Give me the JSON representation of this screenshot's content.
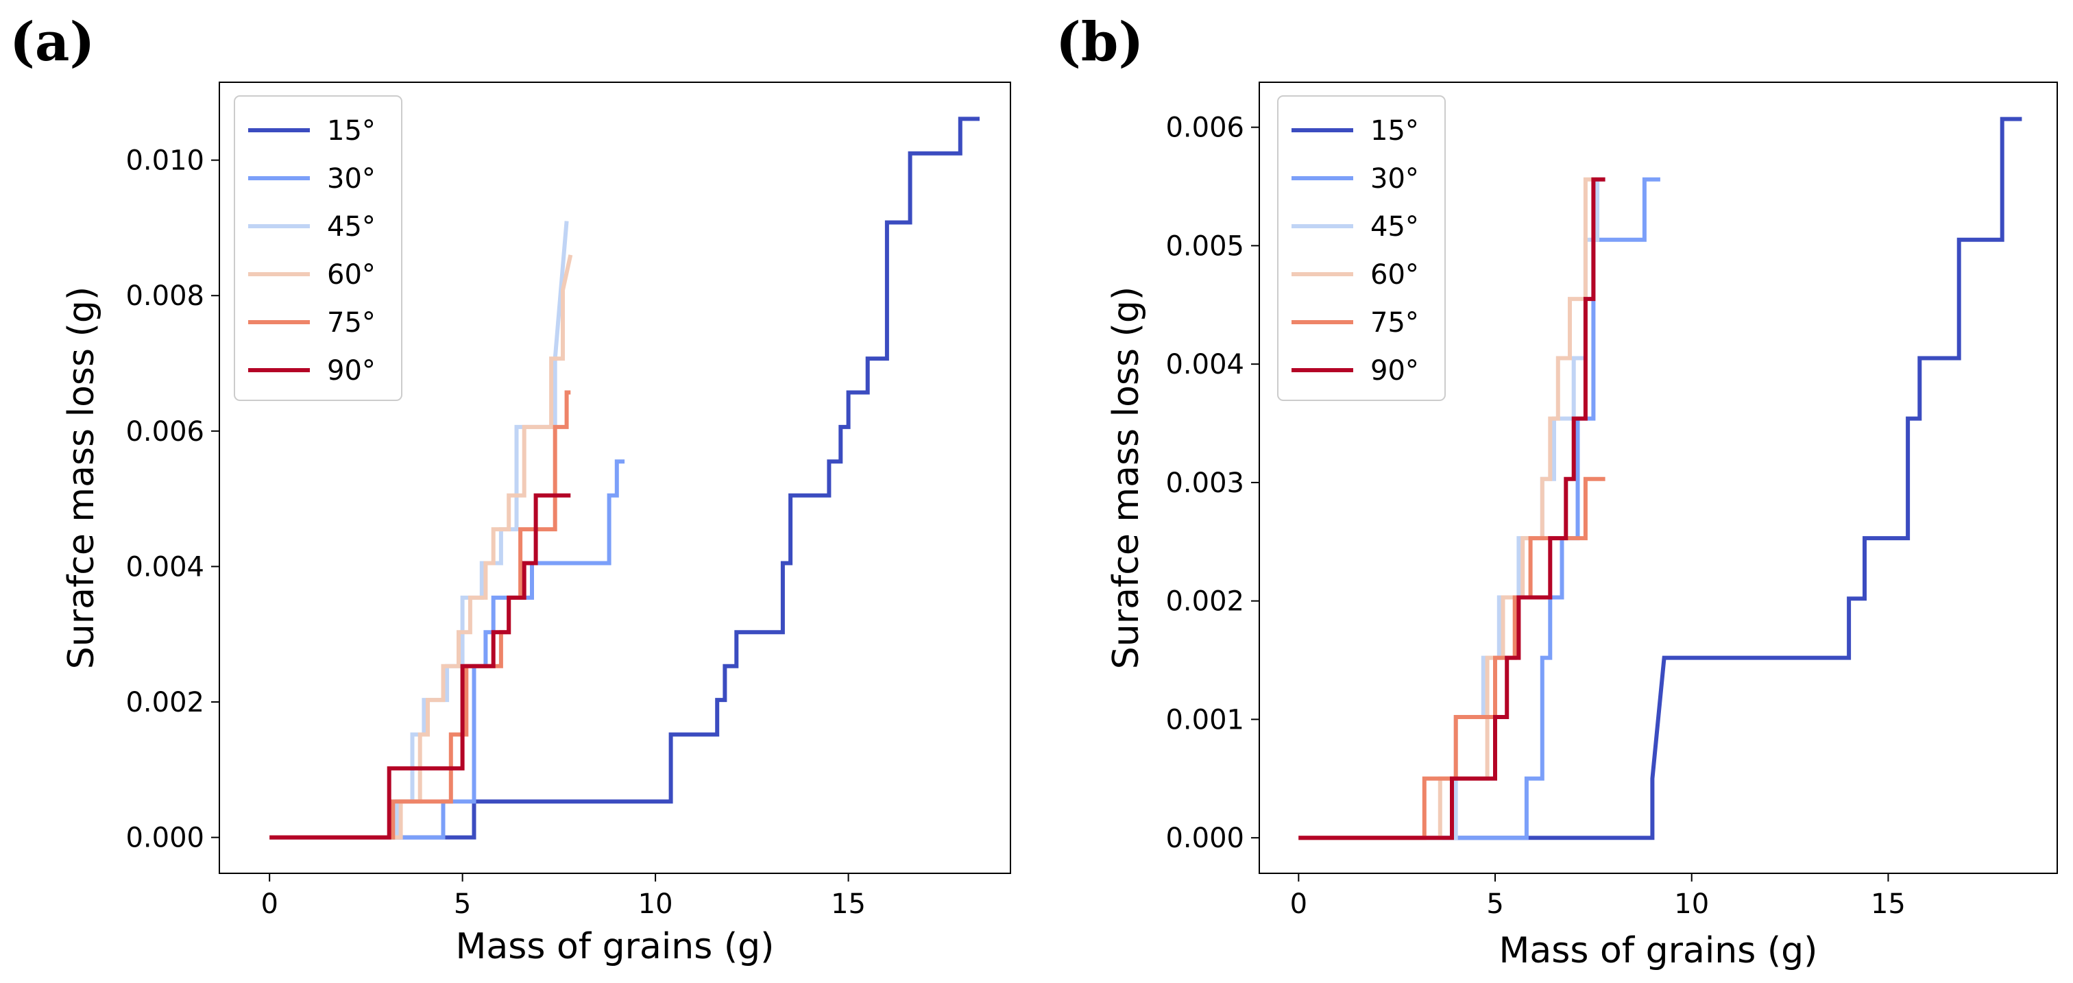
{
  "chart_data": [
    {
      "panel": "(a)",
      "type": "line",
      "xlabel": "Mass of grains (g)",
      "ylabel": "Surafce mass loss (g)",
      "xlim": [
        -1.3,
        19.2
      ],
      "ylim": [
        -0.00053,
        0.01115
      ],
      "xticks": [
        0,
        5,
        10,
        15
      ],
      "xtick_labels": [
        "0",
        "5",
        "10",
        "15"
      ],
      "yticks": [
        0,
        0.002,
        0.004,
        0.006,
        0.008,
        0.01
      ],
      "ytick_labels": [
        "0.000",
        "0.002",
        "0.004",
        "0.006",
        "0.008",
        "0.010"
      ],
      "legend_position": "upper-left",
      "series": [
        {
          "name": "15°",
          "color": "#3b4cc0",
          "x": [
            0,
            5.3,
            5.3,
            10.4,
            10.4,
            11.6,
            11.6,
            11.8,
            11.8,
            12.1,
            12.1,
            13.3,
            13.3,
            13.5,
            13.5,
            14.5,
            14.5,
            14.8,
            14.8,
            15.0,
            15.0,
            15.3,
            15.3,
            15.5,
            15.5,
            16.0,
            16.0,
            16.3,
            16.3,
            16.6,
            16.6,
            16.8,
            16.8,
            17.9,
            17.9,
            18.4
          ],
          "y": [
            0,
            0,
            0.00053,
            0.00053,
            0.00152,
            0.00152,
            0.00203,
            0.00203,
            0.00253,
            0.00253,
            0.00303,
            0.00303,
            0.00405,
            0.00405,
            0.00505,
            0.00505,
            0.00555,
            0.00555,
            0.00606,
            0.00606,
            0.00657,
            0.00657,
            0.00657,
            0.00657,
            0.00707,
            0.00707,
            0.00908,
            0.00908,
            0.00908,
            0.00908,
            0.0101,
            0.0101,
            0.0101,
            0.0101,
            0.01061,
            0.01061
          ]
        },
        {
          "name": "30°",
          "color": "#7b9ff9",
          "x": [
            0,
            4.5,
            4.5,
            5.3,
            5.3,
            5.6,
            5.6,
            5.8,
            5.8,
            6.5,
            6.5,
            6.8,
            6.8,
            8.8,
            8.8,
            9.0,
            9.0,
            9.2
          ],
          "y": [
            0,
            0,
            0.00053,
            0.00053,
            0.00253,
            0.00253,
            0.00303,
            0.00303,
            0.00354,
            0.00354,
            0.00354,
            0.00354,
            0.00405,
            0.00405,
            0.00505,
            0.00505,
            0.00555,
            0.00555
          ]
        },
        {
          "name": "45°",
          "color": "#c0d4f5",
          "x": [
            0,
            3.3,
            3.3,
            3.7,
            3.7,
            4.0,
            4.0,
            4.6,
            4.6,
            5.0,
            5.0,
            5.2,
            5.2,
            5.5,
            5.5,
            6.0,
            6.0,
            6.4,
            6.4,
            6.6,
            6.6,
            7.4,
            7.4,
            7.7
          ],
          "y": [
            0,
            0,
            0.00053,
            0.00053,
            0.00152,
            0.00152,
            0.00203,
            0.00203,
            0.00253,
            0.00253,
            0.00354,
            0.00354,
            0.00354,
            0.00354,
            0.00405,
            0.00405,
            0.00455,
            0.00455,
            0.00606,
            0.00606,
            0.00606,
            0.00606,
            0.00707,
            0.0091
          ]
        },
        {
          "name": "60°",
          "color": "#f2cbb7",
          "x": [
            0,
            3.4,
            3.4,
            3.9,
            3.9,
            4.1,
            4.1,
            4.5,
            4.5,
            4.9,
            4.9,
            5.2,
            5.2,
            5.6,
            5.6,
            5.8,
            5.8,
            6.2,
            6.2,
            6.6,
            6.6,
            7.3,
            7.3,
            7.6,
            7.6,
            7.8
          ],
          "y": [
            0,
            0,
            0.00053,
            0.00053,
            0.00152,
            0.00152,
            0.00203,
            0.00203,
            0.00253,
            0.00253,
            0.00303,
            0.00303,
            0.00354,
            0.00354,
            0.00405,
            0.00405,
            0.00455,
            0.00455,
            0.00505,
            0.00505,
            0.00606,
            0.00606,
            0.00707,
            0.00707,
            0.00808,
            0.0086
          ]
        },
        {
          "name": "75°",
          "color": "#ee8468",
          "x": [
            0,
            3.2,
            3.2,
            4.7,
            4.7,
            5.1,
            5.1,
            5.5,
            5.5,
            6.0,
            6.0,
            6.2,
            6.2,
            6.5,
            6.5,
            6.8,
            6.8,
            7.4,
            7.4,
            7.7,
            7.7,
            7.8
          ],
          "y": [
            0,
            0,
            0.00053,
            0.00053,
            0.00152,
            0.00152,
            0.00253,
            0.00253,
            0.00253,
            0.00253,
            0.00303,
            0.00303,
            0.00354,
            0.00354,
            0.00455,
            0.00455,
            0.00455,
            0.00455,
            0.00606,
            0.00606,
            0.00657,
            0.00657
          ]
        },
        {
          "name": "90°",
          "color": "#b40426",
          "x": [
            0,
            3.1,
            3.1,
            5.0,
            5.0,
            5.3,
            5.3,
            5.8,
            5.8,
            6.2,
            6.2,
            6.6,
            6.6,
            6.9,
            6.9,
            7.4,
            7.4,
            7.8
          ],
          "y": [
            0,
            0,
            0.00102,
            0.00102,
            0.00253,
            0.00253,
            0.00253,
            0.00253,
            0.00303,
            0.00303,
            0.00354,
            0.00354,
            0.00405,
            0.00405,
            0.00505,
            0.00505,
            0.00505,
            0.00505
          ]
        }
      ]
    },
    {
      "panel": "(b)",
      "type": "line",
      "xlabel": "Mass of grains (g)",
      "ylabel": "Surafce mass loss (g)",
      "xlim": [
        -1.0,
        19.3
      ],
      "ylim": [
        -0.0003,
        0.00638
      ],
      "xticks": [
        0,
        5,
        10,
        15
      ],
      "xtick_labels": [
        "0",
        "5",
        "10",
        "15"
      ],
      "yticks": [
        0,
        0.001,
        0.002,
        0.003,
        0.004,
        0.005,
        0.006
      ],
      "ytick_labels": [
        "0.000",
        "0.001",
        "0.002",
        "0.003",
        "0.004",
        "0.005",
        "0.006"
      ],
      "legend_position": "upper-left",
      "series": [
        {
          "name": "15°",
          "color": "#3b4cc0",
          "x": [
            0,
            9.0,
            9.0,
            9.3,
            9.3,
            14.0,
            14.0,
            14.4,
            14.4,
            14.7,
            14.7,
            15.5,
            15.5,
            15.8,
            15.8,
            16.0,
            16.0,
            16.8,
            16.8,
            17.1,
            17.1,
            17.9,
            17.9,
            18.4
          ],
          "y": [
            0,
            0,
            0.0005,
            0.00152,
            0.00152,
            0.00152,
            0.00202,
            0.00202,
            0.00253,
            0.00253,
            0.00253,
            0.00253,
            0.00354,
            0.00354,
            0.00405,
            0.00405,
            0.00405,
            0.00405,
            0.00505,
            0.00505,
            0.00505,
            0.00505,
            0.00607,
            0.00607
          ]
        },
        {
          "name": "30°",
          "color": "#7b9ff9",
          "x": [
            0,
            5.8,
            5.8,
            6.2,
            6.2,
            6.4,
            6.4,
            6.7,
            6.7,
            7.1,
            7.1,
            7.5,
            7.5,
            7.7,
            7.7,
            8.8,
            8.8,
            9.2
          ],
          "y": [
            0,
            0,
            0.0005,
            0.0005,
            0.00152,
            0.00152,
            0.00203,
            0.00203,
            0.00253,
            0.00253,
            0.00354,
            0.00354,
            0.00505,
            0.00505,
            0.00505,
            0.00505,
            0.00556,
            0.00556
          ]
        },
        {
          "name": "45°",
          "color": "#c0d4f5",
          "x": [
            0,
            4.0,
            4.0,
            4.7,
            4.7,
            5.1,
            5.1,
            5.6,
            5.6,
            6.2,
            6.2,
            6.5,
            6.5,
            7.0,
            7.0,
            7.3,
            7.3,
            7.6,
            7.6,
            7.8
          ],
          "y": [
            0,
            0,
            0.00102,
            0.00102,
            0.00152,
            0.00152,
            0.00203,
            0.00203,
            0.00253,
            0.00253,
            0.00303,
            0.00303,
            0.00354,
            0.00354,
            0.00405,
            0.00405,
            0.00505,
            0.00505,
            0.00556,
            0.00556
          ]
        },
        {
          "name": "60°",
          "color": "#f2cbb7",
          "x": [
            0,
            3.6,
            3.6,
            4.8,
            4.8,
            5.2,
            5.2,
            5.7,
            5.7,
            6.0,
            6.0,
            6.2,
            6.2,
            6.4,
            6.4,
            6.6,
            6.6,
            6.9,
            6.9,
            7.3,
            7.3,
            7.6
          ],
          "y": [
            0,
            0,
            0.0005,
            0.0005,
            0.00152,
            0.00152,
            0.00203,
            0.00203,
            0.00253,
            0.00253,
            0.00253,
            0.00253,
            0.00303,
            0.00303,
            0.00354,
            0.00354,
            0.00405,
            0.00405,
            0.00455,
            0.00455,
            0.00556,
            0.00556
          ]
        },
        {
          "name": "75°",
          "color": "#ee8468",
          "x": [
            0,
            3.2,
            3.2,
            4.0,
            4.0,
            4.3,
            4.3,
            5.0,
            5.0,
            5.5,
            5.5,
            5.9,
            5.9,
            6.1,
            6.1,
            7.3,
            7.3,
            7.8
          ],
          "y": [
            0,
            0,
            0.0005,
            0.0005,
            0.00102,
            0.00102,
            0.00102,
            0.00102,
            0.00152,
            0.00152,
            0.00203,
            0.00203,
            0.00253,
            0.00253,
            0.00253,
            0.00253,
            0.00303,
            0.00303
          ]
        },
        {
          "name": "90°",
          "color": "#b40426",
          "x": [
            0,
            3.9,
            3.9,
            5.0,
            5.0,
            5.3,
            5.3,
            5.6,
            5.6,
            6.4,
            6.4,
            6.8,
            6.8,
            7.0,
            7.0,
            7.3,
            7.3,
            7.5,
            7.5,
            7.8
          ],
          "y": [
            0,
            0,
            0.0005,
            0.0005,
            0.00102,
            0.00102,
            0.00152,
            0.00152,
            0.00203,
            0.00203,
            0.00253,
            0.00253,
            0.00303,
            0.00303,
            0.00354,
            0.00354,
            0.00455,
            0.00455,
            0.00556,
            0.00556
          ]
        }
      ]
    }
  ]
}
